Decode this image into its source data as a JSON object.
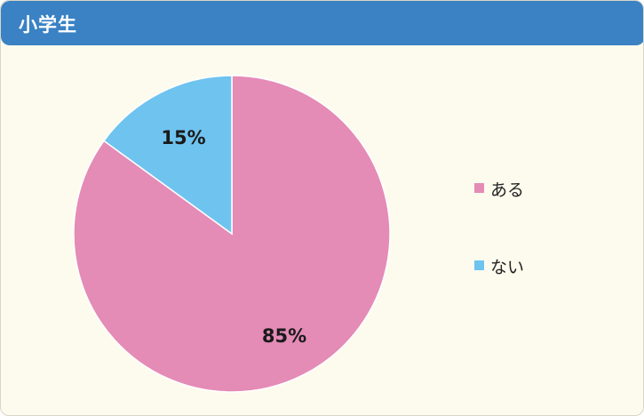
{
  "header": {
    "title": "小学生"
  },
  "chart_data": {
    "type": "pie",
    "title": "小学生",
    "slices": [
      {
        "label": "ある",
        "value": 85,
        "value_label": "85%",
        "color": "#e48bb6"
      },
      {
        "label": "ない",
        "value": 15,
        "value_label": "15%",
        "color": "#6fc3ef"
      }
    ],
    "legend_placement": "right"
  }
}
